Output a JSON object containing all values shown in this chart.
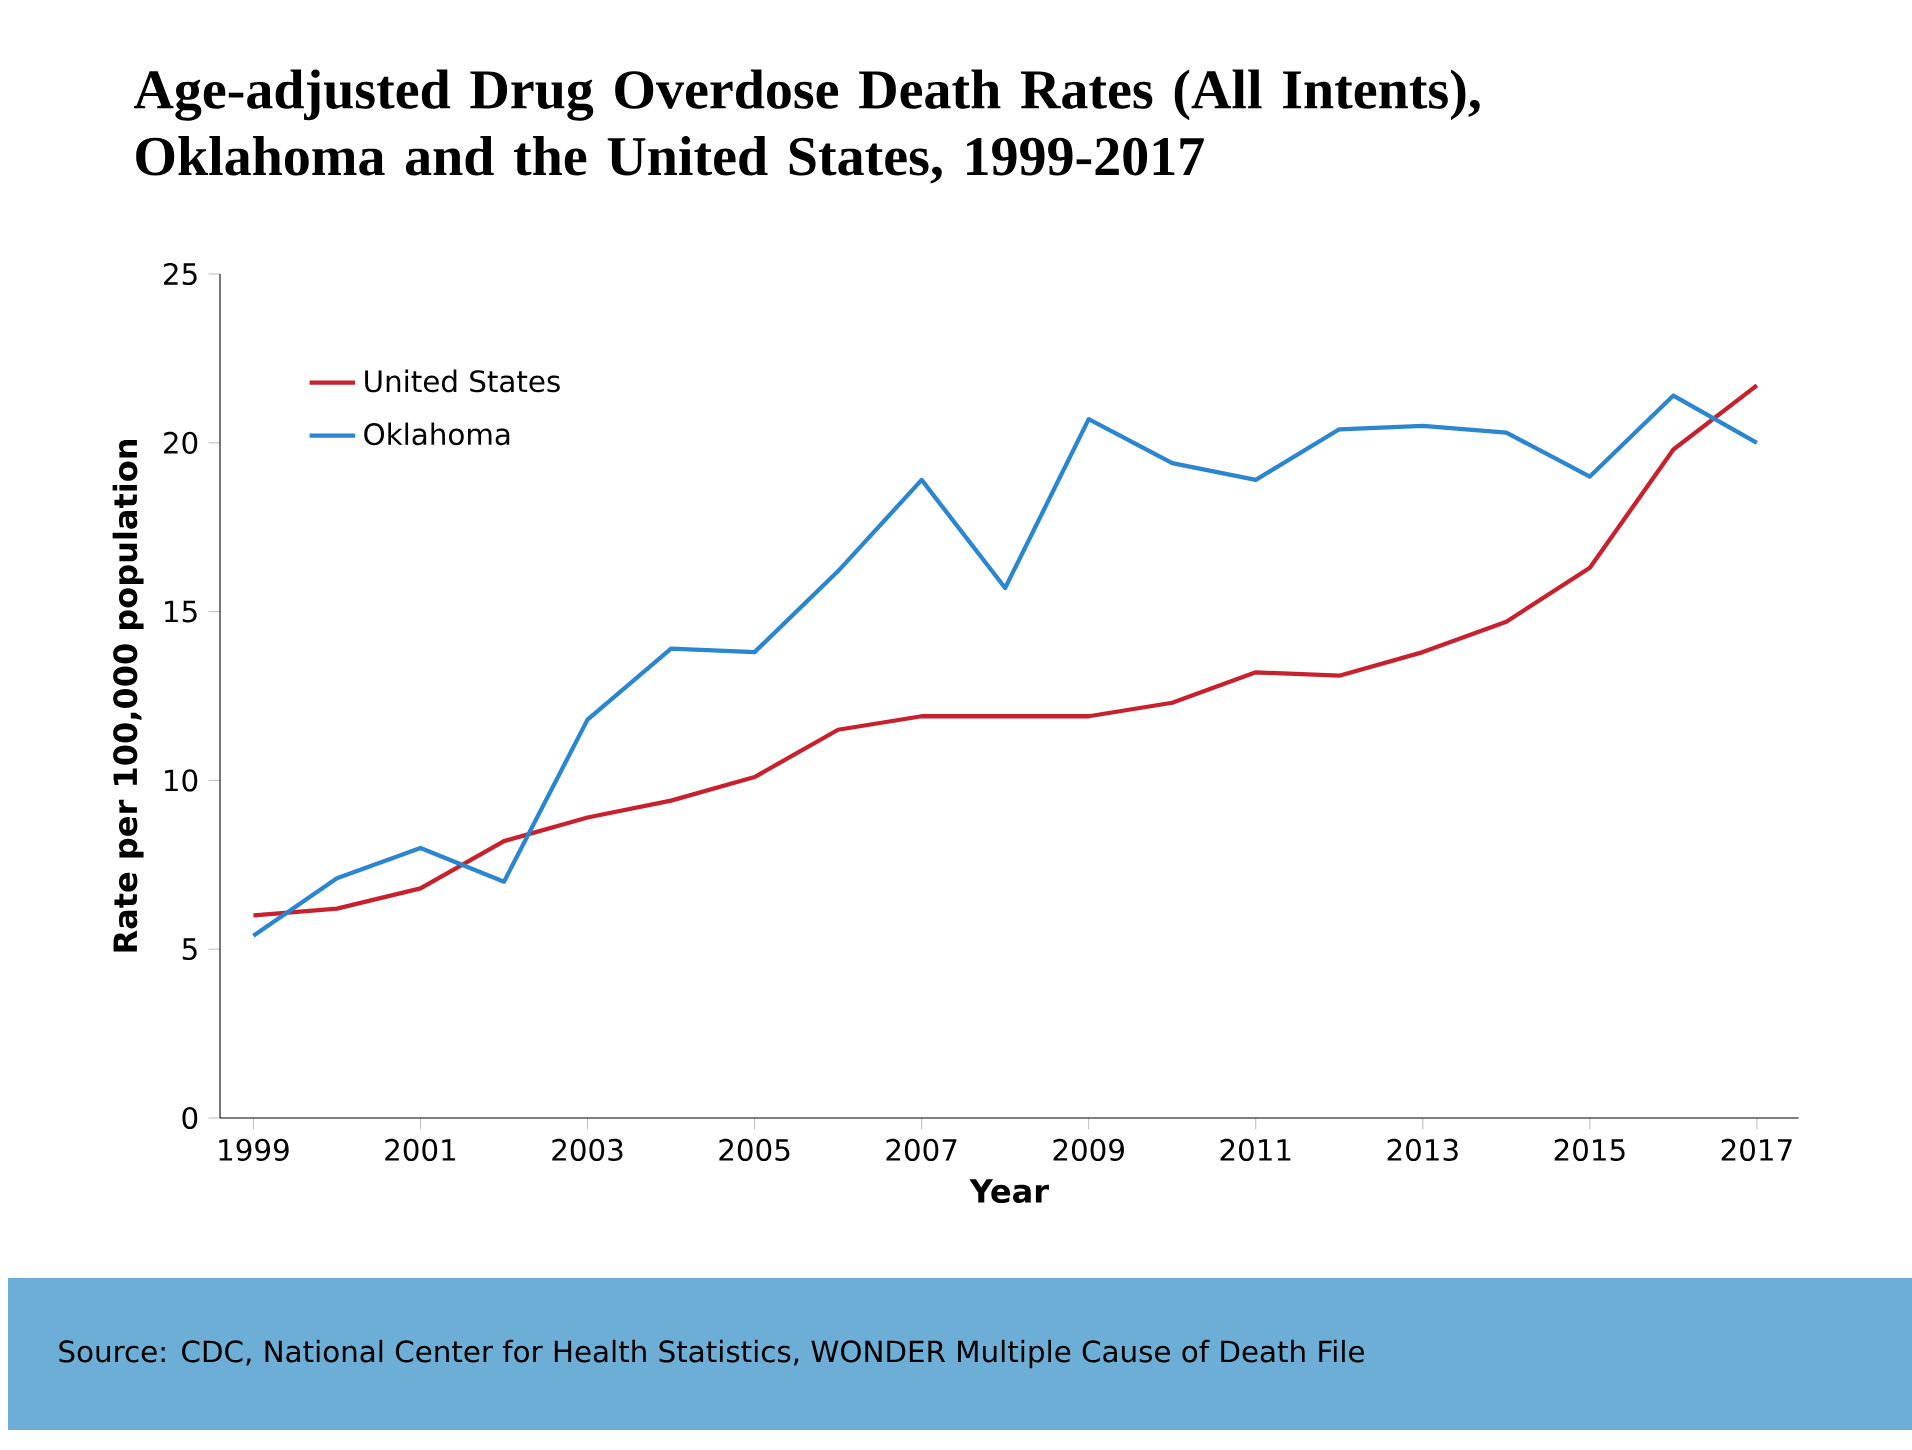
{
  "chart_data": {
    "type": "line",
    "title": "Age-adjusted Drug Overdose Death Rates (All Intents), Oklahoma and the United States, 1999-2017",
    "xlabel": "Year",
    "ylabel": "Rate per 100,000 population",
    "x": [
      1999,
      2000,
      2001,
      2002,
      2003,
      2004,
      2005,
      2006,
      2007,
      2008,
      2009,
      2010,
      2011,
      2012,
      2013,
      2014,
      2015,
      2016,
      2017
    ],
    "series": [
      {
        "name": "United States",
        "color": "#c8202c",
        "values": [
          6.0,
          6.2,
          6.8,
          8.2,
          8.9,
          9.4,
          10.1,
          11.5,
          11.9,
          11.9,
          11.9,
          12.3,
          13.2,
          13.1,
          13.8,
          14.7,
          16.3,
          19.8,
          21.7
        ]
      },
      {
        "name": "Oklahoma",
        "color": "#2a86d0",
        "values": [
          5.4,
          7.1,
          8.0,
          7.0,
          11.8,
          13.9,
          13.8,
          16.2,
          18.9,
          15.7,
          20.7,
          19.4,
          18.9,
          20.4,
          20.5,
          20.3,
          19.0,
          21.4,
          20.0
        ]
      }
    ],
    "xlim": [
      1998.6,
      2017.5
    ],
    "xticks": [
      1999,
      2001,
      2003,
      2005,
      2007,
      2009,
      2011,
      2013,
      2015,
      2017
    ],
    "ylim": [
      0,
      25
    ],
    "yticks": [
      0,
      5,
      10,
      15,
      20,
      25
    ],
    "legend": "top left",
    "grid": false,
    "marker": "none",
    "line_style": "solid",
    "annotations": [
      "Source: CDC, National Center for Health Statistics, WONDER Multiple Cause of Death File"
    ]
  }
}
